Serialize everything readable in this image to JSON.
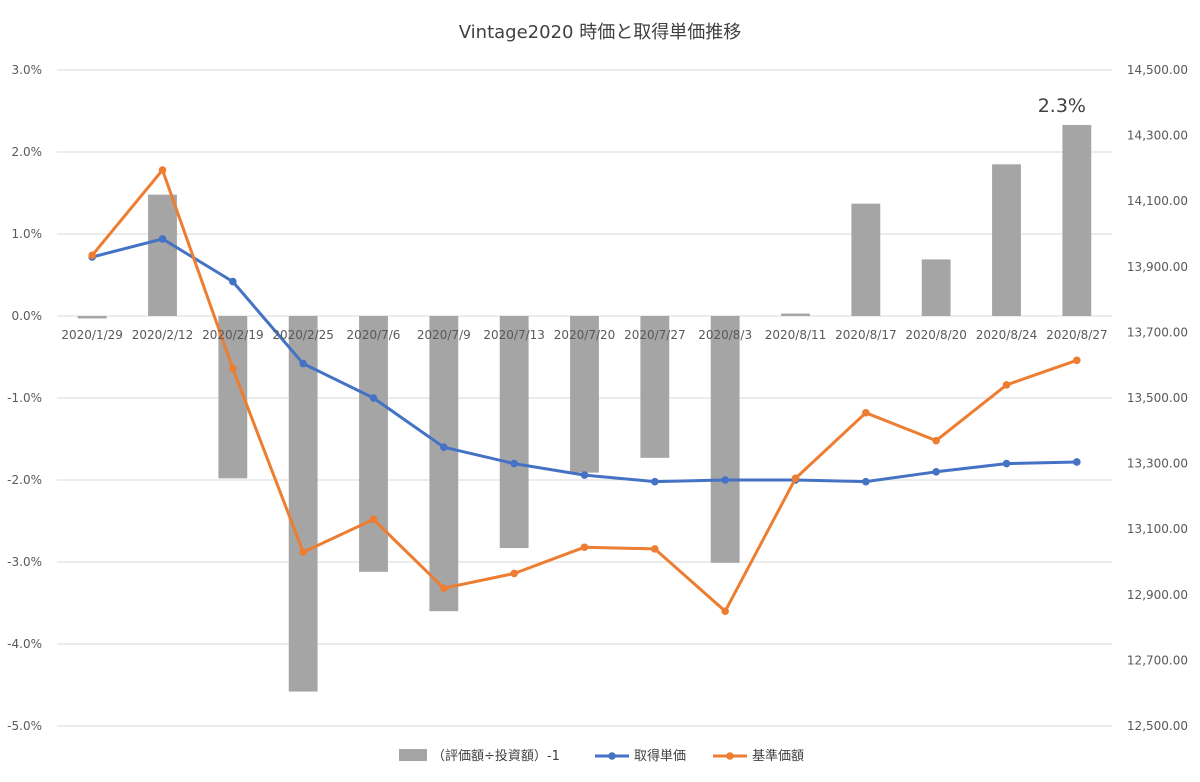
{
  "chart_data": {
    "type": "bar+line",
    "title": "Vintage2020 時価と取得単価推移",
    "categories": [
      "2020/1/29",
      "2020/2/12",
      "2020/2/19",
      "2020/2/25",
      "2020/7/6",
      "2020/7/9",
      "2020/7/13",
      "2020/7/20",
      "2020/7/27",
      "2020/8/3",
      "2020/8/11",
      "2020/8/17",
      "2020/8/20",
      "2020/8/24",
      "2020/8/27"
    ],
    "y_left": {
      "min": -0.05,
      "max": 0.03,
      "step": 0.01,
      "ticks": [
        "3.0%",
        "2.0%",
        "1.0%",
        "0.0%",
        "-1.0%",
        "-2.0%",
        "-3.0%",
        "-4.0%",
        "-5.0%"
      ]
    },
    "y_right": {
      "min": 12500,
      "max": 14500,
      "step": 200,
      "ticks": [
        "14,500.00",
        "14,300.00",
        "14,100.00",
        "13,900.00",
        "13,700.00",
        "13,500.00",
        "13,300.00",
        "13,100.00",
        "12,900.00",
        "12,700.00",
        "12,500.00"
      ]
    },
    "series": [
      {
        "name": "（評価額÷投資額）-1",
        "kind": "bar",
        "axis": "left",
        "color": "#a5a5a5",
        "values": [
          -0.0003,
          0.0148,
          -0.0198,
          -0.0458,
          -0.0312,
          -0.036,
          -0.0283,
          -0.0191,
          -0.0173,
          -0.0301,
          0.0003,
          0.0137,
          0.0069,
          0.0185,
          0.0233
        ]
      },
      {
        "name": "取得単価",
        "kind": "line",
        "axis": "right",
        "color": "#4472c4",
        "values": [
          13930,
          13985,
          13855,
          13605,
          13500,
          13350,
          13300,
          13265,
          13245,
          13250,
          13250,
          13245,
          13275,
          13300,
          13305
        ]
      },
      {
        "name": "基準価額",
        "kind": "line",
        "axis": "right",
        "color": "#ed7d31",
        "values": [
          13935,
          14195,
          13590,
          13030,
          13130,
          12920,
          12965,
          13045,
          13040,
          12850,
          13255,
          13455,
          13370,
          13540,
          13615
        ]
      }
    ],
    "annotations": [
      {
        "text": "2.3%",
        "category": "2020/8/27"
      }
    ],
    "grid": true,
    "legend": "bottom"
  }
}
